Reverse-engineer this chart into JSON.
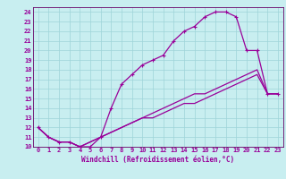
{
  "xlabel": "Windchill (Refroidissement éolien,°C)",
  "bg_color": "#c8eef0",
  "grid_color": "#9ed4d8",
  "line_color": "#990099",
  "spine_color": "#660066",
  "xlim": [
    -0.5,
    23.5
  ],
  "ylim": [
    10,
    24.5
  ],
  "xticks": [
    0,
    1,
    2,
    3,
    4,
    5,
    6,
    7,
    8,
    9,
    10,
    11,
    12,
    13,
    14,
    15,
    16,
    17,
    18,
    19,
    20,
    21,
    22,
    23
  ],
  "yticks": [
    10,
    11,
    12,
    13,
    14,
    15,
    16,
    17,
    18,
    19,
    20,
    21,
    22,
    23,
    24
  ],
  "curve1_x": [
    0,
    1,
    2,
    3,
    4,
    5,
    6,
    7,
    8,
    9,
    10,
    11,
    12,
    13,
    14,
    15,
    16,
    17,
    18,
    19,
    20,
    21,
    22,
    23
  ],
  "curve1_y": [
    12,
    11,
    10.5,
    10.5,
    10,
    10,
    11,
    14,
    16.5,
    17.5,
    18.5,
    19,
    19.5,
    21,
    22,
    22.5,
    23.5,
    24,
    24,
    23.5,
    20,
    20,
    15.5,
    15.5
  ],
  "curve2_x": [
    0,
    1,
    2,
    3,
    4,
    5,
    6,
    7,
    8,
    9,
    10,
    11,
    12,
    13,
    14,
    15,
    16,
    17,
    18,
    19,
    20,
    21,
    22,
    23
  ],
  "curve2_y": [
    12,
    11,
    10.5,
    10.5,
    10,
    10.5,
    11,
    11.5,
    12,
    12.5,
    13,
    13.5,
    14,
    14.5,
    15,
    15.5,
    15.5,
    16,
    16.5,
    17,
    17.5,
    18,
    15.5,
    15.5
  ],
  "curve3_x": [
    0,
    1,
    2,
    3,
    4,
    5,
    6,
    7,
    8,
    9,
    10,
    11,
    12,
    13,
    14,
    15,
    16,
    17,
    18,
    19,
    20,
    21,
    22,
    23
  ],
  "curve3_y": [
    12,
    11,
    10.5,
    10.5,
    10,
    10.5,
    11,
    11.5,
    12,
    12.5,
    13,
    13,
    13.5,
    14,
    14.5,
    14.5,
    15,
    15.5,
    16,
    16.5,
    17,
    17.5,
    15.5,
    15.5
  ],
  "tick_fontsize": 5,
  "xlabel_fontsize": 5.5
}
